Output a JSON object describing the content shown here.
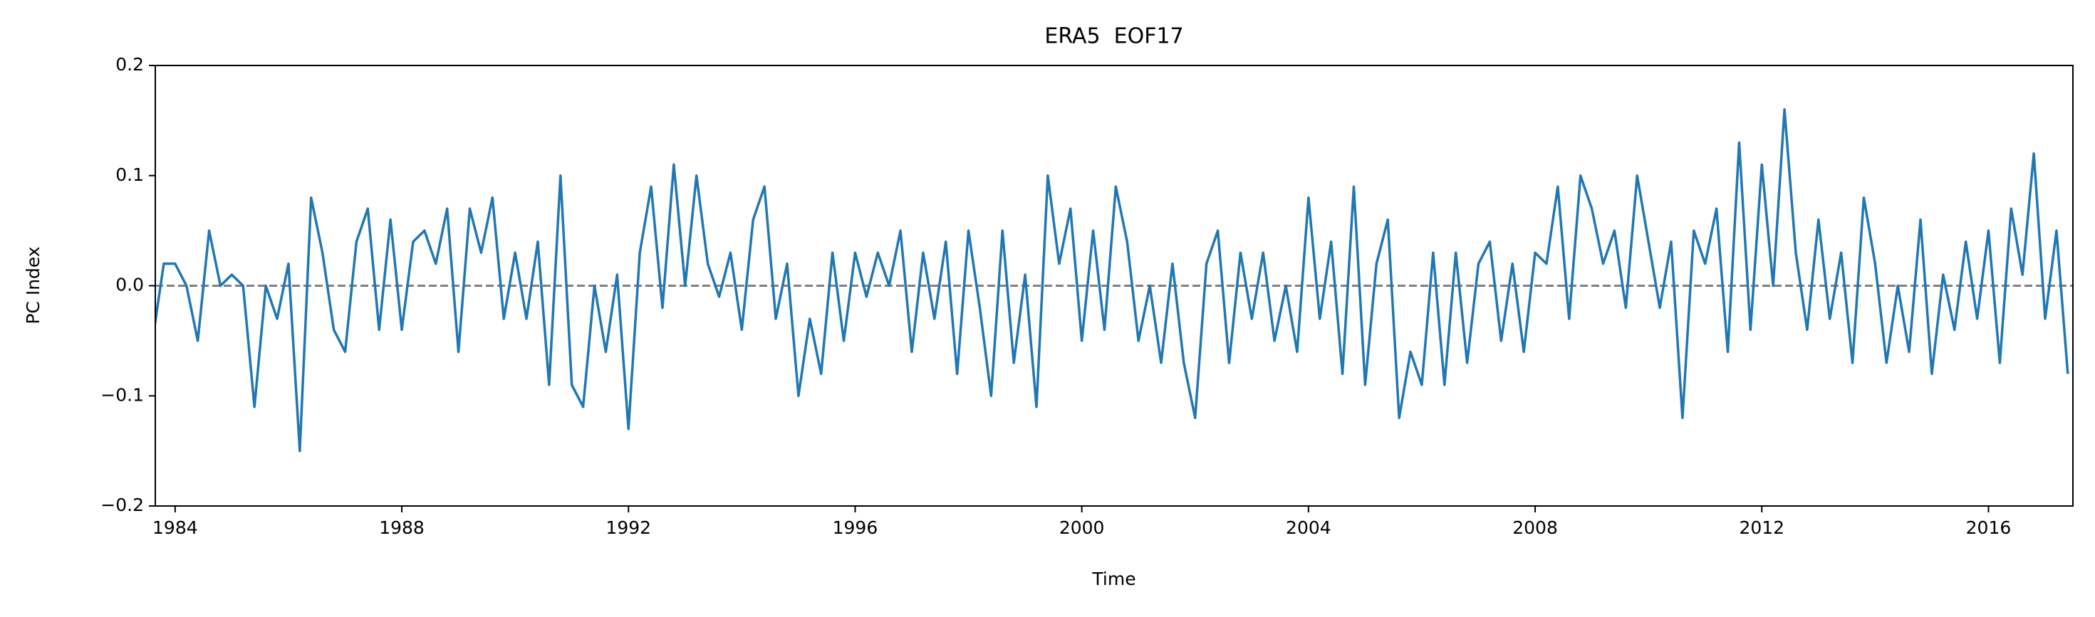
{
  "chart_data": {
    "type": "line",
    "title": "ERA5  EOF17",
    "x_label": "Time",
    "y_label": "PC Index",
    "color": "#1f77b4",
    "reference_line": {
      "y": 0,
      "color": "#808080",
      "style": "dashed"
    },
    "xlim": [
      1983.65,
      2017.49
    ],
    "xticks": [
      1984,
      1988,
      1992,
      1996,
      2000,
      2004,
      2008,
      2012,
      2016
    ],
    "ylim": [
      -0.2,
      0.2
    ],
    "yticks": [
      {
        "value": -0.2,
        "label": "−0.2"
      },
      {
        "value": -0.1,
        "label": "−0.1"
      },
      {
        "value": 0,
        "label": "0.0"
      },
      0.1,
      0.2
    ],
    "x": [
      1983.6,
      1983.8,
      1984.0,
      1984.2,
      1984.4,
      1984.6,
      1984.8,
      1985.0,
      1985.2,
      1985.4,
      1985.6,
      1985.8,
      1986.0,
      1986.2,
      1986.4,
      1986.6,
      1986.8,
      1987.0,
      1987.2,
      1987.4,
      1987.6,
      1987.8,
      1988.0,
      1988.2,
      1988.4,
      1988.6,
      1988.8,
      1989.0,
      1989.2,
      1989.4,
      1989.6,
      1989.8,
      1990.0,
      1990.2,
      1990.4,
      1990.6,
      1990.8,
      1991.0,
      1991.2,
      1991.4,
      1991.6,
      1991.8,
      1992.0,
      1992.2,
      1992.4,
      1992.6,
      1992.8,
      1993.0,
      1993.2,
      1993.4,
      1993.6,
      1993.8,
      1994.0,
      1994.2,
      1994.4,
      1994.6,
      1994.8,
      1995.0,
      1995.2,
      1995.4,
      1995.6,
      1995.8,
      1996.0,
      1996.2,
      1996.4,
      1996.6,
      1996.8,
      1997.0,
      1997.2,
      1997.4,
      1997.6,
      1997.8,
      1998.0,
      1998.2,
      1998.4,
      1998.6,
      1998.8,
      1999.0,
      1999.2,
      1999.4,
      1999.6,
      1999.8,
      2000.0,
      2000.2,
      2000.4,
      2000.6,
      2000.8,
      2001.0,
      2001.2,
      2001.4,
      2001.6,
      2001.8,
      2002.0,
      2002.2,
      2002.4,
      2002.6,
      2002.8,
      2003.0,
      2003.2,
      2003.4,
      2003.6,
      2003.8,
      2004.0,
      2004.2,
      2004.4,
      2004.6,
      2004.8,
      2005.0,
      2005.2,
      2005.4,
      2005.6,
      2005.8,
      2006.0,
      2006.2,
      2006.4,
      2006.6,
      2006.8,
      2007.0,
      2007.2,
      2007.4,
      2007.6,
      2007.8,
      2008.0,
      2008.2,
      2008.4,
      2008.6,
      2008.8,
      2009.0,
      2009.2,
      2009.4,
      2009.6,
      2009.8,
      2010.0,
      2010.2,
      2010.4,
      2010.6,
      2010.8,
      2011.0,
      2011.2,
      2011.4,
      2011.6,
      2011.8,
      2012.0,
      2012.2,
      2012.4,
      2012.6,
      2012.8,
      2013.0,
      2013.2,
      2013.4,
      2013.6,
      2013.8,
      2014.0,
      2014.2,
      2014.4,
      2014.6,
      2014.8,
      2015.0,
      2015.2,
      2015.4,
      2015.6,
      2015.8,
      2016.0,
      2016.2,
      2016.4,
      2016.6,
      2016.8,
      2017.0,
      2017.2,
      2017.4
    ],
    "values": [
      -0.05,
      0.02,
      0.02,
      0.0,
      -0.05,
      0.05,
      0.0,
      0.01,
      0.0,
      -0.11,
      0.0,
      -0.03,
      0.02,
      -0.15,
      0.08,
      0.03,
      -0.04,
      -0.06,
      0.04,
      0.07,
      -0.04,
      0.06,
      -0.04,
      0.04,
      0.05,
      0.02,
      0.07,
      -0.06,
      0.07,
      0.03,
      0.08,
      -0.03,
      0.03,
      -0.03,
      0.04,
      -0.09,
      0.1,
      -0.09,
      -0.11,
      0.0,
      -0.06,
      0.01,
      -0.13,
      0.03,
      0.09,
      -0.02,
      0.11,
      0.0,
      0.1,
      0.02,
      -0.01,
      0.03,
      -0.04,
      0.06,
      0.09,
      -0.03,
      0.02,
      -0.1,
      -0.03,
      -0.08,
      0.03,
      -0.05,
      0.03,
      -0.01,
      0.03,
      0.0,
      0.05,
      -0.06,
      0.03,
      -0.03,
      0.04,
      -0.08,
      0.05,
      -0.02,
      -0.1,
      0.05,
      -0.07,
      0.01,
      -0.11,
      0.1,
      0.02,
      0.07,
      -0.05,
      0.05,
      -0.04,
      0.09,
      0.04,
      -0.05,
      0.0,
      -0.07,
      0.02,
      -0.07,
      -0.12,
      0.02,
      0.05,
      -0.07,
      0.03,
      -0.03,
      0.03,
      -0.05,
      0.0,
      -0.06,
      0.08,
      -0.03,
      0.04,
      -0.08,
      0.09,
      -0.09,
      0.02,
      0.06,
      -0.12,
      -0.06,
      -0.09,
      0.03,
      -0.09,
      0.03,
      -0.07,
      0.02,
      0.04,
      -0.05,
      0.02,
      -0.06,
      0.03,
      0.02,
      0.09,
      -0.03,
      0.1,
      0.07,
      0.02,
      0.05,
      -0.02,
      0.1,
      0.04,
      -0.02,
      0.04,
      -0.12,
      0.05,
      0.02,
      0.07,
      -0.06,
      0.13,
      -0.04,
      0.11,
      0.0,
      0.16,
      0.03,
      -0.04,
      0.06,
      -0.03,
      0.03,
      -0.07,
      0.08,
      0.02,
      -0.07,
      0.0,
      -0.06,
      0.06,
      -0.08,
      0.01,
      -0.04,
      0.04,
      -0.03,
      0.05,
      -0.07,
      0.07,
      0.01,
      0.12,
      -0.03,
      0.05,
      -0.08
    ]
  }
}
